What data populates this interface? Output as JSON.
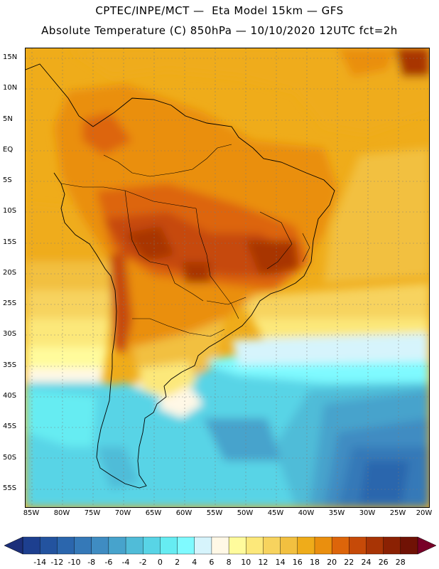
{
  "header": {
    "line1": "CPTEC/INPE/MCT —  Eta Model 15km — GFS",
    "line2": "Absolute Temperature (C) 850hPa — 10/10/2020 12UTC fct=2h"
  },
  "map": {
    "region": "South America",
    "lat_labels": [
      "15N",
      "10N",
      "5N",
      "EQ",
      "5S",
      "10S",
      "15S",
      "20S",
      "25S",
      "30S",
      "35S",
      "40S",
      "45S",
      "50S",
      "55S"
    ],
    "lon_labels": [
      "85W",
      "80W",
      "75W",
      "70W",
      "65W",
      "60W",
      "55W",
      "50W",
      "45W",
      "40W",
      "35W",
      "30W",
      "25W",
      "20W"
    ]
  },
  "colorbar": {
    "labels": [
      "-14",
      "-12",
      "-10",
      "-8",
      "-6",
      "-4",
      "-2",
      "0",
      "2",
      "4",
      "6",
      "8",
      "10",
      "12",
      "14",
      "16",
      "18",
      "20",
      "22",
      "24",
      "26",
      "28"
    ],
    "colors": [
      "#1d3f8f",
      "#23539f",
      "#2b66ad",
      "#3579b8",
      "#3f8cc2",
      "#47a3cc",
      "#50bcd8",
      "#58d4e6",
      "#66ecf2",
      "#7ffaff",
      "#d6f4fc",
      "#fff8e6",
      "#fffb9c",
      "#fce87a",
      "#f7d35e",
      "#f2c040",
      "#efac1a",
      "#ea8f0e",
      "#dd650a",
      "#c64a08",
      "#a83405",
      "#8b2103",
      "#701205"
    ],
    "left_end": "#1c2f7a",
    "right_end": "#780028"
  }
}
